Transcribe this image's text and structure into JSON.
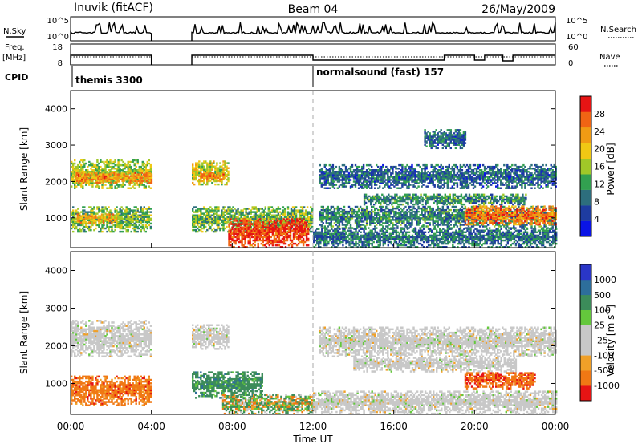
{
  "header": {
    "station": "Inuvik (fitACF)",
    "beam": "Beam 04",
    "date": "26/May/2009"
  },
  "strip_nsky": {
    "left_label": "N.Sky",
    "right_label": "N.Search",
    "y_ticks": [
      "10^5",
      "10^0"
    ]
  },
  "strip_freq": {
    "left_label_top": "Freq.",
    "left_label_bottom": "[MHz]",
    "right_label": "Nave",
    "left_ticks": [
      "18",
      "8"
    ],
    "right_ticks": [
      "60",
      "0"
    ]
  },
  "cpid": {
    "label": "CPID",
    "segments": [
      {
        "name": "themis 3300",
        "start_hour": 0
      },
      {
        "name": "normalsound (fast) 157",
        "start_hour": 12
      }
    ]
  },
  "x_axis": {
    "label": "Time UT",
    "ticks": [
      "00:00",
      "04:00",
      "08:00",
      "12:00",
      "16:00",
      "20:00",
      "00:00"
    ],
    "tick_hours": [
      0,
      4,
      8,
      12,
      16,
      20,
      24
    ],
    "range_hours": [
      0,
      24
    ]
  },
  "colors": {
    "no_data": "#ffffff",
    "ground_scatter": "#c8c8c8",
    "power_scale": [
      "#0a14e6",
      "#1e3ca0",
      "#2d6e7d",
      "#32a050",
      "#a0c828",
      "#f0c814",
      "#f09b14",
      "#f06414",
      "#e61414"
    ],
    "velocity_scale": [
      "#2a36c8",
      "#2d6e9b",
      "#3c8c5a",
      "#64c83c",
      "#c8c8c8",
      "#c8c8c8",
      "#f0a028",
      "#f07814",
      "#e61414"
    ]
  },
  "power_panel": {
    "ylabel": "Slant Range [km]",
    "y_ticks": [
      "4000",
      "3000",
      "2000",
      "1000"
    ],
    "cbar_label": "Power [dB]",
    "cbar_ticks": [
      "28",
      "24",
      "20",
      "16",
      "12",
      "8",
      "4"
    ]
  },
  "velocity_panel": {
    "ylabel": "Slant Range [km]",
    "y_ticks": [
      "4000",
      "3000",
      "2000",
      "1000"
    ],
    "cbar_label": "Velocity [m s",
    "cbar_label_sup": "-1",
    "cbar_label_end": "]",
    "cbar_ticks": [
      "1000",
      "500",
      "100",
      "25",
      "-25",
      "-100",
      "-500",
      "-1000"
    ]
  },
  "chart_data": {
    "type": "heatmap",
    "title": "Inuvik (fitACF)  Beam 04  26/May/2009",
    "xlabel": "Time UT",
    "ylabel": "Slant Range [km]",
    "xlim_hours": [
      0,
      24
    ],
    "ylim_km": [
      180,
      4500
    ],
    "data_gaps_hours": [
      [
        4.0,
        6.0
      ]
    ],
    "power_colorbar": {
      "label": "Power [dB]",
      "range_db": [
        0,
        32
      ],
      "ticks": [
        4,
        8,
        12,
        16,
        20,
        24,
        28
      ]
    },
    "velocity_colorbar": {
      "label": "Velocity [m s^-1]",
      "ticks": [
        1000,
        500,
        100,
        25,
        -25,
        -100,
        -500,
        -1000
      ]
    },
    "power_echo_bands": [
      {
        "t0": 0.0,
        "t1": 4.0,
        "r0": 1800,
        "r1": 2600,
        "p_db": 16
      },
      {
        "t0": 0.2,
        "t1": 4.0,
        "r0": 1950,
        "r1": 2250,
        "p_db": 24
      },
      {
        "t0": 0.0,
        "t1": 4.0,
        "r0": 600,
        "r1": 1300,
        "p_db": 14
      },
      {
        "t0": 0.3,
        "t1": 2.3,
        "r0": 850,
        "r1": 1100,
        "p_db": 22
      },
      {
        "t0": 6.0,
        "t1": 7.8,
        "r0": 1900,
        "r1": 2550,
        "p_db": 18
      },
      {
        "t0": 6.4,
        "t1": 7.6,
        "r0": 2000,
        "r1": 2250,
        "p_db": 24
      },
      {
        "t0": 6.0,
        "t1": 12.0,
        "r0": 600,
        "r1": 1300,
        "p_db": 14
      },
      {
        "t0": 7.8,
        "t1": 11.8,
        "r0": 180,
        "r1": 950,
        "p_db": 29
      },
      {
        "t0": 12.3,
        "t1": 24.0,
        "r0": 1800,
        "r1": 2450,
        "p_db": 8
      },
      {
        "t0": 14.5,
        "t1": 22.5,
        "r0": 1350,
        "r1": 1650,
        "p_db": 11
      },
      {
        "t0": 12.3,
        "t1": 24.0,
        "r0": 700,
        "r1": 1300,
        "p_db": 10
      },
      {
        "t0": 19.5,
        "t1": 24.0,
        "r0": 800,
        "r1": 1300,
        "p_db": 25
      },
      {
        "t0": 12.0,
        "t1": 24.0,
        "r0": 180,
        "r1": 700,
        "p_db": 9
      },
      {
        "t0": 17.5,
        "t1": 19.5,
        "r0": 2900,
        "r1": 3400,
        "p_db": 8
      }
    ],
    "velocity_echo_bands": [
      {
        "t0": 0.0,
        "t1": 4.0,
        "r0": 1700,
        "r1": 2650,
        "v": 0,
        "gs": true
      },
      {
        "t0": 0.0,
        "t1": 4.0,
        "r0": 400,
        "r1": 1200,
        "v": -300
      },
      {
        "t0": 6.0,
        "t1": 7.8,
        "r0": 1900,
        "r1": 2550,
        "v": 0,
        "gs": true
      },
      {
        "t0": 6.0,
        "t1": 9.5,
        "r0": 600,
        "r1": 1300,
        "v": 300
      },
      {
        "t0": 7.5,
        "t1": 12.0,
        "r0": 180,
        "r1": 700,
        "v": 50
      },
      {
        "t0": 12.3,
        "t1": 24.0,
        "r0": 1700,
        "r1": 2500,
        "v": 0,
        "gs": true
      },
      {
        "t0": 14.0,
        "t1": 22.0,
        "r0": 1300,
        "r1": 1700,
        "v": 0,
        "gs": true
      },
      {
        "t0": 19.5,
        "t1": 23.0,
        "r0": 850,
        "r1": 1300,
        "v": -400
      },
      {
        "t0": 12.0,
        "t1": 24.0,
        "r0": 180,
        "r1": 800,
        "v": 0,
        "gs": true
      }
    ]
  }
}
